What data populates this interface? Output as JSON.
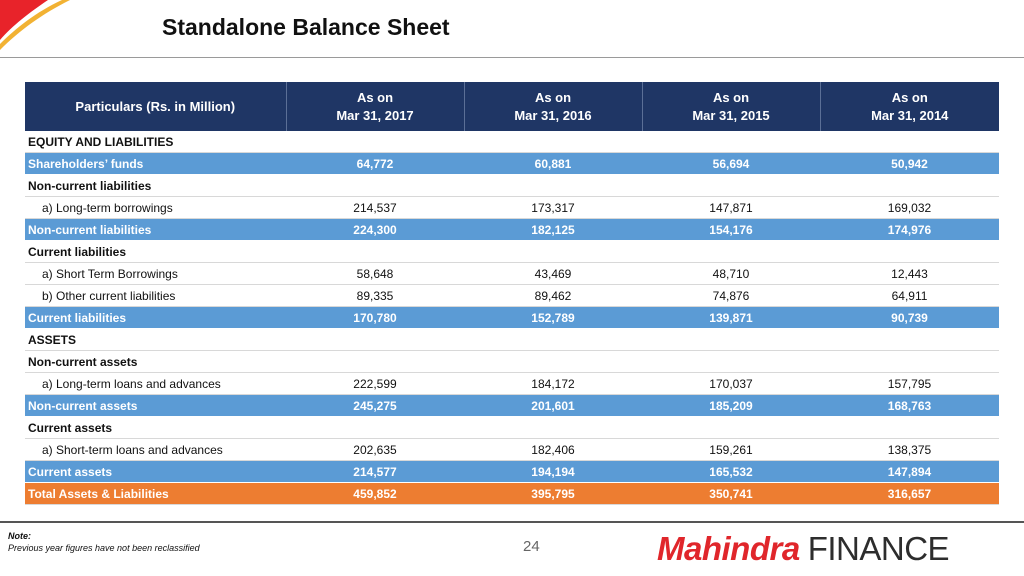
{
  "title": "Standalone Balance Sheet",
  "table": {
    "header": {
      "particulars": "Particulars (Rs. in Million)",
      "columns": [
        {
          "line1": "As on",
          "line2": "Mar 31, 2017"
        },
        {
          "line1": "As on",
          "line2": "Mar 31, 2016"
        },
        {
          "line1": "As on",
          "line2": "Mar 31, 2015"
        },
        {
          "line1": "As on",
          "line2": "Mar 31, 2014"
        }
      ]
    },
    "rows": [
      {
        "type": "section",
        "label": "EQUITY AND LIABILITIES",
        "values": [
          "",
          "",
          "",
          ""
        ]
      },
      {
        "type": "highlight",
        "label": "Shareholders’ funds",
        "values": [
          "64,772",
          "60,881",
          "56,694",
          "50,942"
        ]
      },
      {
        "type": "section",
        "label": "Non-current liabilities",
        "values": [
          "",
          "",
          "",
          ""
        ]
      },
      {
        "type": "sub",
        "label": "a) Long-term borrowings",
        "values": [
          "214,537",
          "173,317",
          "147,871",
          "169,032"
        ]
      },
      {
        "type": "highlight",
        "label": "Non-current liabilities",
        "values": [
          "224,300",
          "182,125",
          "154,176",
          "174,976"
        ]
      },
      {
        "type": "section",
        "label": "Current liabilities",
        "values": [
          "",
          "",
          "",
          ""
        ]
      },
      {
        "type": "sub",
        "label": "a) Short Term Borrowings",
        "values": [
          "58,648",
          "43,469",
          "48,710",
          "12,443"
        ]
      },
      {
        "type": "sub",
        "label": "b) Other current liabilities",
        "values": [
          "89,335",
          "89,462",
          "74,876",
          "64,911"
        ]
      },
      {
        "type": "highlight",
        "label": "Current liabilities",
        "values": [
          "170,780",
          "152,789",
          "139,871",
          "90,739"
        ]
      },
      {
        "type": "section",
        "label": "ASSETS",
        "values": [
          "",
          "",
          "",
          ""
        ]
      },
      {
        "type": "section",
        "label": "Non-current assets",
        "values": [
          "",
          "",
          "",
          ""
        ]
      },
      {
        "type": "sub",
        "label": "a) Long-term loans and advances",
        "values": [
          "222,599",
          "184,172",
          "170,037",
          "157,795"
        ]
      },
      {
        "type": "highlight",
        "label": "Non-current assets",
        "values": [
          "245,275",
          "201,601",
          "185,209",
          "168,763"
        ]
      },
      {
        "type": "section",
        "label": "Current assets",
        "values": [
          "",
          "",
          "",
          ""
        ]
      },
      {
        "type": "sub",
        "label": "a) Short-term loans and advances",
        "values": [
          "202,635",
          "182,406",
          "159,261",
          "138,375"
        ]
      },
      {
        "type": "highlight",
        "label": "Current assets",
        "values": [
          "214,577",
          "194,194",
          "165,532",
          "147,894"
        ]
      },
      {
        "type": "total",
        "label": "Total Assets & Liabilities",
        "values": [
          "459,852",
          "395,795",
          "350,741",
          "316,657"
        ]
      }
    ]
  },
  "footer": {
    "note_title": "Note:",
    "note_text": "Previous year figures have not been reclassified",
    "page_number": "24",
    "logo_part1": "Mahindra",
    "logo_part2": "FINANCE"
  },
  "colors": {
    "header_bg": "#1f3665",
    "highlight_bg": "#5b9bd5",
    "total_bg": "#ed7d31",
    "brand_red": "#e0262b"
  }
}
